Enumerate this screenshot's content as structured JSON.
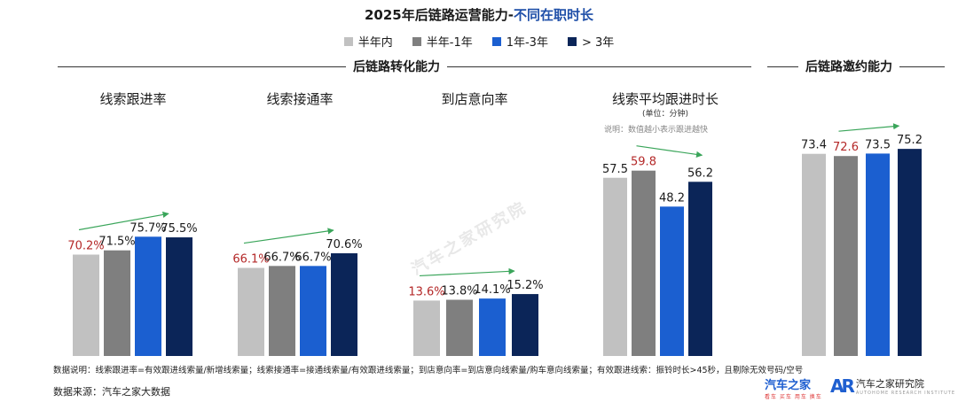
{
  "title": {
    "main": "2025年后链路运营能力-",
    "accent": "不同在职时长"
  },
  "legend": [
    {
      "label": "半年内",
      "color": "#c1c1c1"
    },
    {
      "label": "半年-1年",
      "color": "#7f7f7f"
    },
    {
      "label": "1年-3年",
      "color": "#1b5fd0"
    },
    {
      "label": "> 3年",
      "color": "#0b2558"
    }
  ],
  "sections": {
    "conversion": "后链路转化能力",
    "invitation": "后链路邀约能力"
  },
  "notes": {
    "unit": "(单位：分钟)",
    "lower_better": "说明：数值越小表示跟进越快",
    "footnote": "数据说明：线索跟进率=有效跟进线索量/新增线索量；线索接通率=接通线索量/有效跟进线索量；到店意向率=到店意向线索量/购车意向线索量；有效跟进线索：振铃时长>45秒，且剔除无效号码/空号",
    "source": "数据来源：汽车之家大数据"
  },
  "logos": {
    "brand1": "汽车之家",
    "brand1_sub": "看车 买车 用车 换车",
    "brand2_mark": "AR",
    "brand2": "汽车之家研究院",
    "brand2_sub": "AUTOHOME RESEARCH INSTITUTE"
  },
  "watermark": "汽车之家研究院",
  "chart_data": [
    {
      "type": "bar",
      "title": "线索跟进率",
      "categories": [
        "半年内",
        "半年-1年",
        "1年-3年",
        "> 3年"
      ],
      "values": [
        70.2,
        71.5,
        75.7,
        75.5
      ],
      "labels": [
        "70.2%",
        "71.5%",
        "75.7%",
        "75.5%"
      ],
      "highlight": [
        0
      ]
    },
    {
      "type": "bar",
      "title": "线索接通率",
      "categories": [
        "半年内",
        "半年-1年",
        "1年-3年",
        "> 3年"
      ],
      "values": [
        66.1,
        66.7,
        66.7,
        70.6
      ],
      "labels": [
        "66.1%",
        "66.7%",
        "66.7%",
        "70.6%"
      ],
      "highlight": [
        0
      ]
    },
    {
      "type": "bar",
      "title": "到店意向率",
      "categories": [
        "半年内",
        "半年-1年",
        "1年-3年",
        "> 3年"
      ],
      "values": [
        13.6,
        13.8,
        14.1,
        15.2
      ],
      "labels": [
        "13.6%",
        "13.8%",
        "14.1%",
        "15.2%"
      ],
      "highlight": [
        0
      ]
    },
    {
      "type": "bar",
      "title": "线索平均跟进时长",
      "categories": [
        "半年内",
        "半年-1年",
        "1年-3年",
        "> 3年"
      ],
      "values": [
        57.5,
        59.8,
        48.2,
        56.2
      ],
      "labels": [
        "57.5",
        "59.8",
        "48.2",
        "56.2"
      ],
      "highlight": [
        1
      ]
    },
    {
      "type": "bar",
      "title": "",
      "categories": [
        "半年内",
        "半年-1年",
        "1年-3年",
        "> 3年"
      ],
      "values": [
        73.4,
        72.6,
        73.5,
        75.2
      ],
      "labels": [
        "73.4",
        "72.6",
        "73.5",
        "75.2"
      ],
      "highlight": [
        1
      ]
    }
  ]
}
